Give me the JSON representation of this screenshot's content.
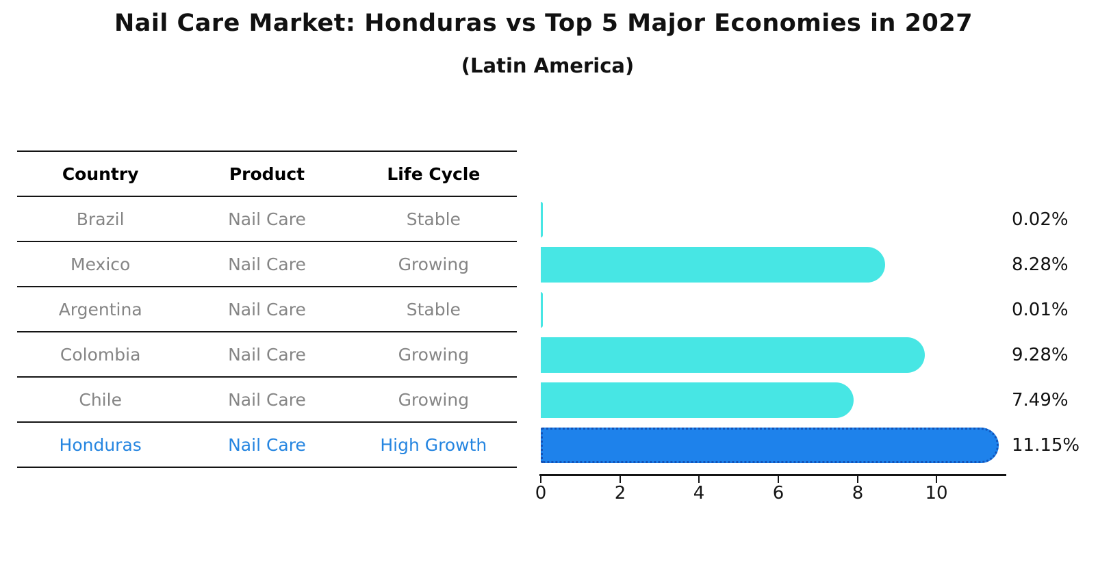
{
  "title": "Nail Care Market: Honduras vs Top 5 Major Economies in 2027",
  "subtitle": "(Latin America)",
  "table": {
    "headers": [
      "Country",
      "Product",
      "Life Cycle"
    ],
    "rows": [
      {
        "country": "Brazil",
        "product": "Nail Care",
        "life_cycle": "Stable"
      },
      {
        "country": "Mexico",
        "product": "Nail Care",
        "life_cycle": "Growing"
      },
      {
        "country": "Argentina",
        "product": "Nail Care",
        "life_cycle": "Stable"
      },
      {
        "country": "Colombia",
        "product": "Nail Care",
        "life_cycle": "Growing"
      },
      {
        "country": "Chile",
        "product": "Nail Care",
        "life_cycle": "Growing"
      },
      {
        "country": "Honduras",
        "product": "Nail Care",
        "life_cycle": "High Growth"
      }
    ]
  },
  "chart_data": {
    "type": "bar",
    "orientation": "horizontal",
    "title": "Nail Care Market: Honduras vs Top 5 Major Economies in 2027",
    "subtitle": "(Latin America)",
    "categories": [
      "Brazil",
      "Mexico",
      "Argentina",
      "Colombia",
      "Chile",
      "Honduras"
    ],
    "values": [
      0.02,
      8.28,
      0.01,
      9.28,
      7.49,
      11.15
    ],
    "value_labels": [
      "0.02%",
      "8.28%",
      "0.01%",
      "9.28%",
      "7.49%",
      "11.15%"
    ],
    "unit": "%",
    "xlabel": "",
    "ylabel": "",
    "xlim": [
      0,
      11.76
    ],
    "x_tick_values": [
      0,
      2,
      4,
      6,
      8,
      10
    ],
    "x_tick_labels": [
      "0",
      "2",
      "4",
      "6",
      "8",
      "10"
    ],
    "grid": false,
    "legend": false,
    "highlight_index": 5,
    "bar_color": "#47E6E4",
    "highlight_bar_color": "#1E82EB",
    "highlight_border_color": "#1353B8",
    "highlight_text_color": "#2585E0",
    "row_text_color": "#858585"
  }
}
